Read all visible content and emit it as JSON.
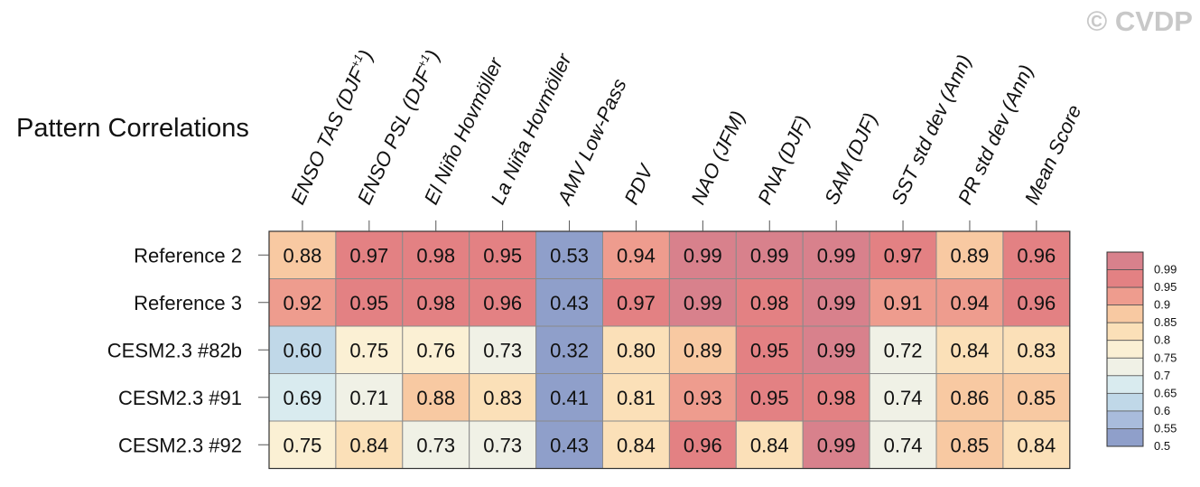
{
  "watermark": "© CVDP",
  "chart_data": {
    "type": "heatmap",
    "title": "Pattern Correlations",
    "columns": [
      "ENSO TAS (DJF+1)",
      "ENSO PSL (DJF+1)",
      "El Niño Hovmöller",
      "La Niña Hovmöller",
      "AMV Low-Pass",
      "PDV",
      "NAO (JFM)",
      "PNA (DJF)",
      "SAM (DJF)",
      "SST std dev (Ann)",
      "PR std dev (Ann)",
      "Mean Score"
    ],
    "rows": [
      "Reference 2",
      "Reference 3",
      "CESM2.3 #82b",
      "CESM2.3 #91",
      "CESM2.3 #92"
    ],
    "values": [
      [
        0.88,
        0.97,
        0.98,
        0.95,
        0.53,
        0.94,
        0.99,
        0.99,
        0.99,
        0.97,
        0.89,
        0.96
      ],
      [
        0.92,
        0.95,
        0.98,
        0.96,
        0.43,
        0.97,
        0.99,
        0.98,
        0.99,
        0.91,
        0.94,
        0.96
      ],
      [
        0.6,
        0.75,
        0.76,
        0.73,
        0.32,
        0.8,
        0.89,
        0.95,
        0.99,
        0.72,
        0.84,
        0.83
      ],
      [
        0.69,
        0.71,
        0.88,
        0.83,
        0.41,
        0.81,
        0.93,
        0.95,
        0.98,
        0.74,
        0.86,
        0.85
      ],
      [
        0.75,
        0.84,
        0.73,
        0.73,
        0.43,
        0.84,
        0.96,
        0.84,
        0.99,
        0.74,
        0.85,
        0.84
      ]
    ],
    "colorbar": {
      "levels": [
        0.5,
        0.55,
        0.6,
        0.65,
        0.7,
        0.75,
        0.8,
        0.85,
        0.9,
        0.95,
        0.99
      ],
      "labels": [
        "0.99",
        "0.95",
        "0.9",
        "0.85",
        "0.8",
        "0.75",
        "0.7",
        "0.65",
        "0.6",
        "0.55",
        "0.5"
      ],
      "colors": [
        "#8f9fca",
        "#a9bcdc",
        "#c0d8e8",
        "#d9ebef",
        "#f0f1e6",
        "#fbf0d4",
        "#fbe0b8",
        "#f8c9a2",
        "#ee9c8e",
        "#e38183",
        "#d8818c"
      ]
    }
  }
}
